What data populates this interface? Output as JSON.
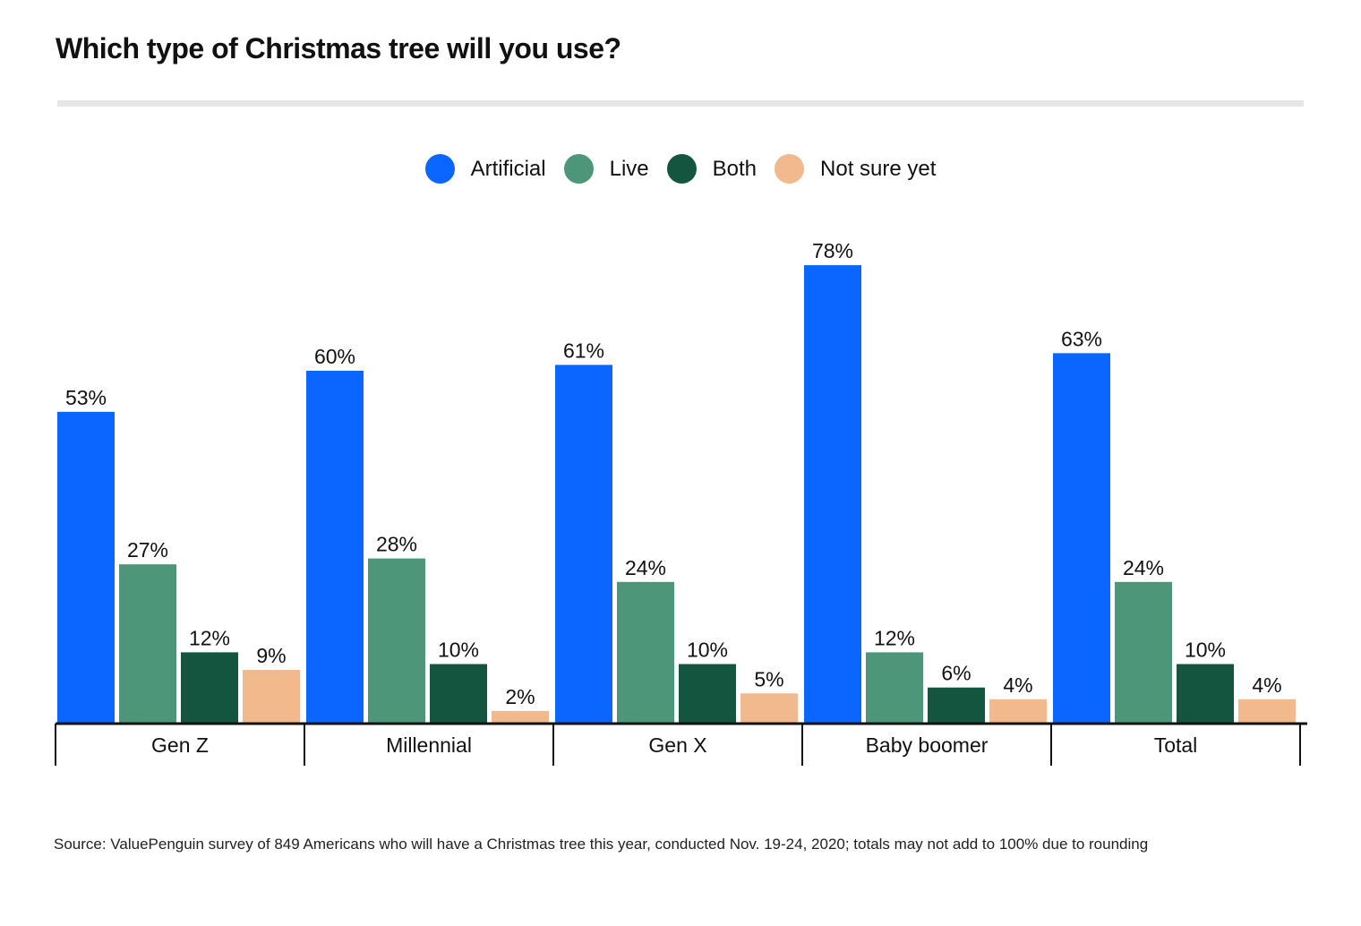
{
  "title": "Which type of Christmas tree will you use?",
  "source": "Source: ValuePenguin survey of 849 Americans who will have a Christmas tree this year, conducted Nov. 19-24, 2020; totals may not add to 100% due to rounding",
  "legend": [
    {
      "label": "Artificial",
      "color": "#0a66ff"
    },
    {
      "label": "Live",
      "color": "#4e967a"
    },
    {
      "label": "Both",
      "color": "#14553f"
    },
    {
      "label": "Not sure yet",
      "color": "#f2b98c"
    }
  ],
  "chart_data": {
    "type": "bar",
    "categories": [
      "Gen Z",
      "Millennial",
      "Gen X",
      "Baby boomer",
      "Total"
    ],
    "series": [
      {
        "name": "Artificial",
        "color": "#0a66ff",
        "values": [
          53,
          60,
          61,
          78,
          63
        ]
      },
      {
        "name": "Live",
        "color": "#4e967a",
        "values": [
          27,
          28,
          24,
          12,
          24
        ]
      },
      {
        "name": "Both",
        "color": "#14553f",
        "values": [
          12,
          10,
          10,
          6,
          10
        ]
      },
      {
        "name": "Not sure yet",
        "color": "#f2b98c",
        "values": [
          9,
          2,
          5,
          4,
          4
        ]
      }
    ],
    "value_suffix": "%",
    "ylim": [
      0,
      80
    ],
    "grid": false,
    "legend_position": "top-center"
  }
}
